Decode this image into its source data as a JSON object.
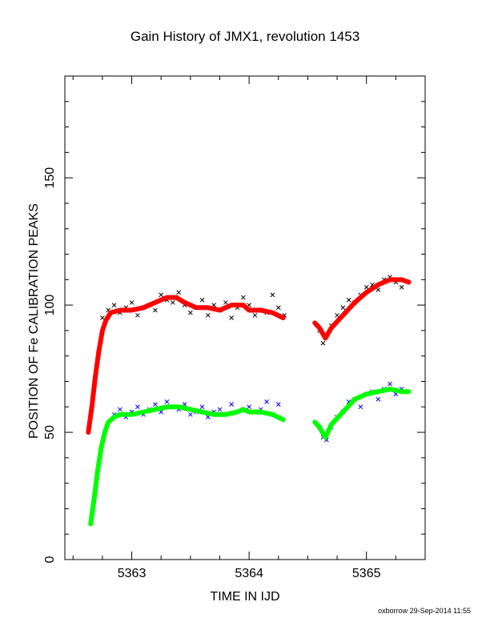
{
  "title": "Gain History of JMX1, revolution 1453",
  "footer": "oxborrow 29-Sep-2014 11:55",
  "colors": {
    "upper_points": "#000000",
    "upper_fit": "#ff0000",
    "lower_points": "#0000ff",
    "lower_fit": "#00ff00",
    "axis": "#000000"
  },
  "chart_data": {
    "type": "scatter",
    "title": "Gain History of JMX1, revolution 1453",
    "xlabel": "TIME IN IJD",
    "ylabel": "POSITION OF Fe CALIBRATION PEAKS",
    "xlim": [
      5362.43,
      5365.5
    ],
    "ylim": [
      0,
      190
    ],
    "xticks": [
      5363,
      5364,
      5365
    ],
    "yticks": [
      0,
      50,
      100,
      150
    ],
    "grid": false,
    "series": [
      {
        "role": "upper-peak-points",
        "marker": "x",
        "x": [
          5362.75,
          5362.8,
          5362.85,
          5362.9,
          5362.95,
          5363.0,
          5363.05,
          5363.1,
          5363.15,
          5363.2,
          5363.25,
          5363.3,
          5363.35,
          5363.4,
          5363.45,
          5363.5,
          5363.55,
          5363.6,
          5363.65,
          5363.7,
          5363.75,
          5363.8,
          5363.85,
          5363.9,
          5363.95,
          5364.0,
          5364.05,
          5364.1,
          5364.15,
          5364.2,
          5364.25,
          5364.3,
          5364.6,
          5364.63,
          5364.66,
          5364.7,
          5364.75,
          5364.8,
          5364.85,
          5364.9,
          5364.95,
          5365.0,
          5365.05,
          5365.1,
          5365.15,
          5365.2,
          5365.25,
          5365.3
        ],
        "y": [
          95,
          98,
          100,
          97,
          99,
          101,
          96,
          99,
          100,
          98,
          104,
          102,
          101,
          105,
          100,
          97,
          99,
          102,
          96,
          100,
          98,
          101,
          95,
          99,
          103,
          100,
          96,
          98,
          97,
          104,
          99,
          96,
          90,
          85,
          88,
          92,
          96,
          99,
          102,
          101,
          104,
          107,
          108,
          106,
          110,
          111,
          109,
          107
        ]
      },
      {
        "role": "upper-peak-fit",
        "marker": "+",
        "x": [
          5362.63,
          5362.66,
          5362.69,
          5362.72,
          5362.75,
          5362.78,
          5362.82,
          5362.9,
          5363.0,
          5363.1,
          5363.2,
          5363.3,
          5363.38,
          5363.45,
          5363.55,
          5363.65,
          5363.75,
          5363.85,
          5363.95,
          5364.0,
          5364.1,
          5364.2,
          5364.29
        ],
        "y": [
          50,
          60,
          72,
          82,
          90,
          94,
          97,
          98,
          98,
          99,
          101,
          103,
          103,
          101,
          99,
          99,
          98,
          100,
          100,
          98,
          98,
          97,
          95
        ],
        "x2": [
          5364.56,
          5364.6,
          5364.65,
          5364.7,
          5364.8,
          5364.9,
          5365.0,
          5365.1,
          5365.2,
          5365.3,
          5365.36
        ],
        "y2": [
          93,
          91,
          87,
          91,
          96,
          101,
          105,
          108,
          110,
          110,
          109
        ]
      },
      {
        "role": "lower-peak-points",
        "marker": "x",
        "x": [
          5362.85,
          5362.9,
          5362.95,
          5363.0,
          5363.05,
          5363.1,
          5363.15,
          5363.2,
          5363.25,
          5363.3,
          5363.35,
          5363.4,
          5363.45,
          5363.5,
          5363.55,
          5363.6,
          5363.65,
          5363.7,
          5363.75,
          5363.8,
          5363.85,
          5363.9,
          5363.95,
          5364.0,
          5364.05,
          5364.1,
          5364.15,
          5364.2,
          5364.25,
          5364.6,
          5364.63,
          5364.66,
          5364.7,
          5364.75,
          5364.8,
          5364.85,
          5364.9,
          5364.95,
          5365.0,
          5365.05,
          5365.1,
          5365.15,
          5365.2,
          5365.25,
          5365.3
        ],
        "y": [
          57,
          59,
          56,
          58,
          60,
          57,
          59,
          61,
          58,
          62,
          60,
          59,
          61,
          57,
          58,
          60,
          56,
          58,
          59,
          57,
          61,
          58,
          59,
          60,
          58,
          59,
          62,
          57,
          61,
          52,
          48,
          47,
          52,
          56,
          58,
          62,
          63,
          60,
          65,
          66,
          63,
          67,
          69,
          65,
          67
        ]
      },
      {
        "role": "lower-peak-fit",
        "marker": "+",
        "x": [
          5362.65,
          5362.68,
          5362.71,
          5362.74,
          5362.77,
          5362.8,
          5362.85,
          5362.9,
          5363.0,
          5363.1,
          5363.2,
          5363.3,
          5363.4,
          5363.5,
          5363.6,
          5363.7,
          5363.8,
          5363.9,
          5363.95,
          5364.0,
          5364.1,
          5364.2,
          5364.29
        ],
        "y": [
          14,
          24,
          35,
          44,
          50,
          54,
          56,
          57,
          57,
          58,
          59,
          60,
          60,
          59,
          58,
          57,
          57,
          58,
          59,
          58,
          58,
          57,
          55
        ],
        "x2": [
          5364.56,
          5364.6,
          5364.65,
          5364.7,
          5364.8,
          5364.9,
          5365.0,
          5365.1,
          5365.2,
          5365.3,
          5365.36
        ],
        "y2": [
          54,
          52,
          48,
          53,
          58,
          63,
          65,
          66,
          67,
          66,
          66
        ]
      }
    ]
  }
}
